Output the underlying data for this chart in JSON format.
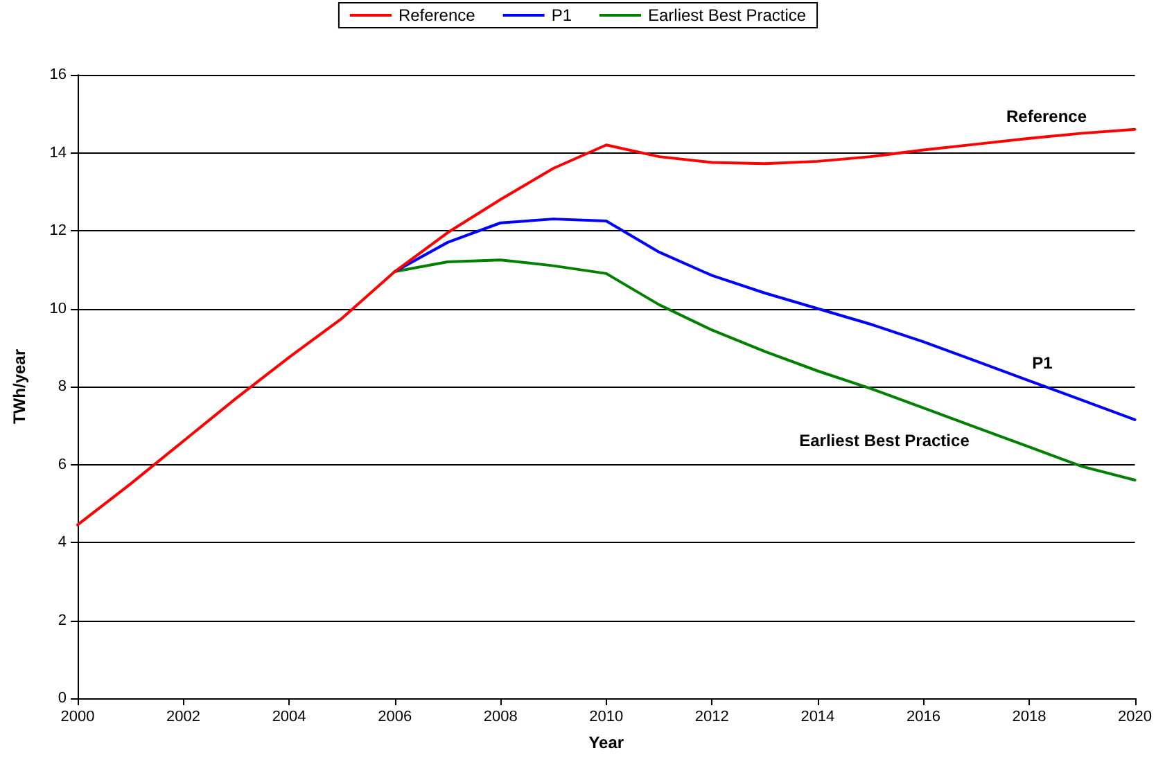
{
  "chart_data": {
    "type": "line",
    "xlabel": "Year",
    "ylabel": "TWh/year",
    "x": [
      2000,
      2001,
      2002,
      2003,
      2004,
      2005,
      2006,
      2007,
      2008,
      2009,
      2010,
      2011,
      2012,
      2013,
      2014,
      2015,
      2016,
      2017,
      2018,
      2019,
      2020
    ],
    "series": [
      {
        "name": "Reference",
        "color": "#ff0000",
        "values": [
          4.45,
          5.5,
          6.6,
          7.7,
          8.75,
          9.75,
          10.95,
          11.95,
          12.8,
          13.6,
          14.2,
          13.9,
          13.75,
          13.72,
          13.78,
          13.9,
          14.07,
          14.22,
          14.37,
          14.5,
          14.6
        ]
      },
      {
        "name": "P1",
        "color": "#0000ff",
        "values": [
          null,
          null,
          null,
          null,
          null,
          null,
          10.95,
          11.7,
          12.2,
          12.3,
          12.25,
          11.45,
          10.85,
          10.4,
          10.0,
          9.6,
          9.15,
          8.65,
          8.15,
          7.65,
          7.15
        ]
      },
      {
        "name": "Earliest Best Practice",
        "color": "#008000",
        "values": [
          null,
          null,
          null,
          null,
          null,
          null,
          10.95,
          11.2,
          11.25,
          11.1,
          10.9,
          10.1,
          9.45,
          8.9,
          8.4,
          7.95,
          7.45,
          6.95,
          6.45,
          5.95,
          5.6
        ]
      }
    ],
    "annotations": [
      "Reference",
      "P1",
      "Earliest Best Practice"
    ],
    "xlim": [
      2000,
      2020
    ],
    "xticks": [
      2000,
      2002,
      2004,
      2006,
      2008,
      2010,
      2012,
      2014,
      2016,
      2018,
      2020
    ],
    "ylim": [
      0,
      16
    ],
    "yticks": [
      0,
      2,
      4,
      6,
      8,
      10,
      12,
      14,
      16
    ],
    "grid": "y",
    "legend": "top",
    "marker": "none",
    "line_style": "solid"
  }
}
